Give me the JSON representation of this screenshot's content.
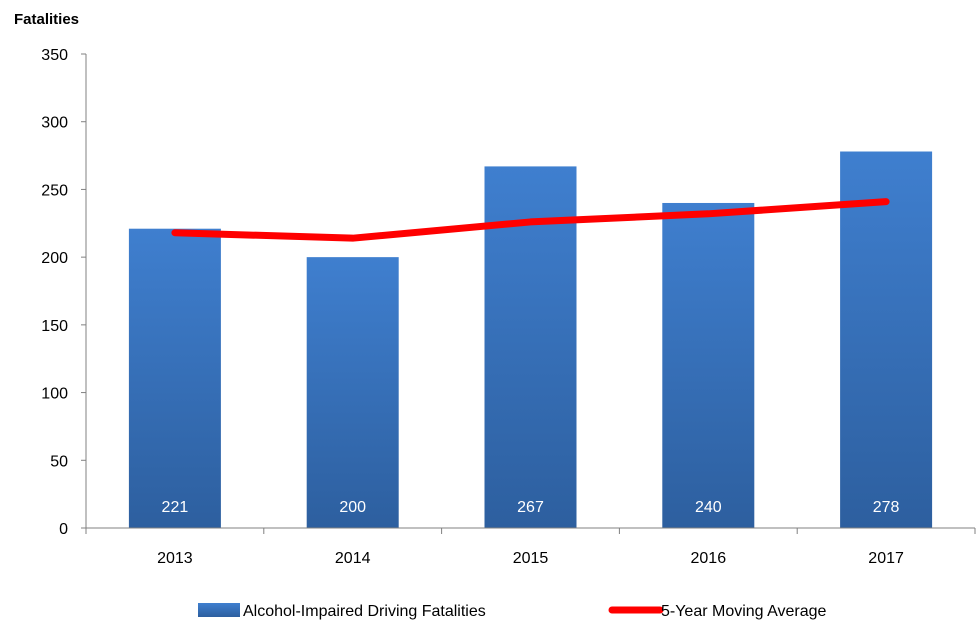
{
  "chart_data": {
    "type": "bar",
    "title": "",
    "xlabel": "",
    "ylabel": "Fatalities",
    "ylim": [
      0,
      350
    ],
    "yticks": [
      0,
      50,
      100,
      150,
      200,
      250,
      300,
      350
    ],
    "grid": false,
    "legend_position": "bottom",
    "categories": [
      "2013",
      "2014",
      "2015",
      "2016",
      "2017"
    ],
    "series": [
      {
        "name": "Alcohol-Impaired Driving Fatalities",
        "type": "bar",
        "values": [
          221,
          200,
          267,
          240,
          278
        ],
        "data_labels": [
          "221",
          "200",
          "267",
          "240",
          "278"
        ],
        "color": "#3a74c0"
      },
      {
        "name": "5-Year Moving Average",
        "type": "line",
        "values": [
          218,
          214,
          226,
          232,
          241
        ],
        "color": "#ff0000"
      }
    ]
  }
}
